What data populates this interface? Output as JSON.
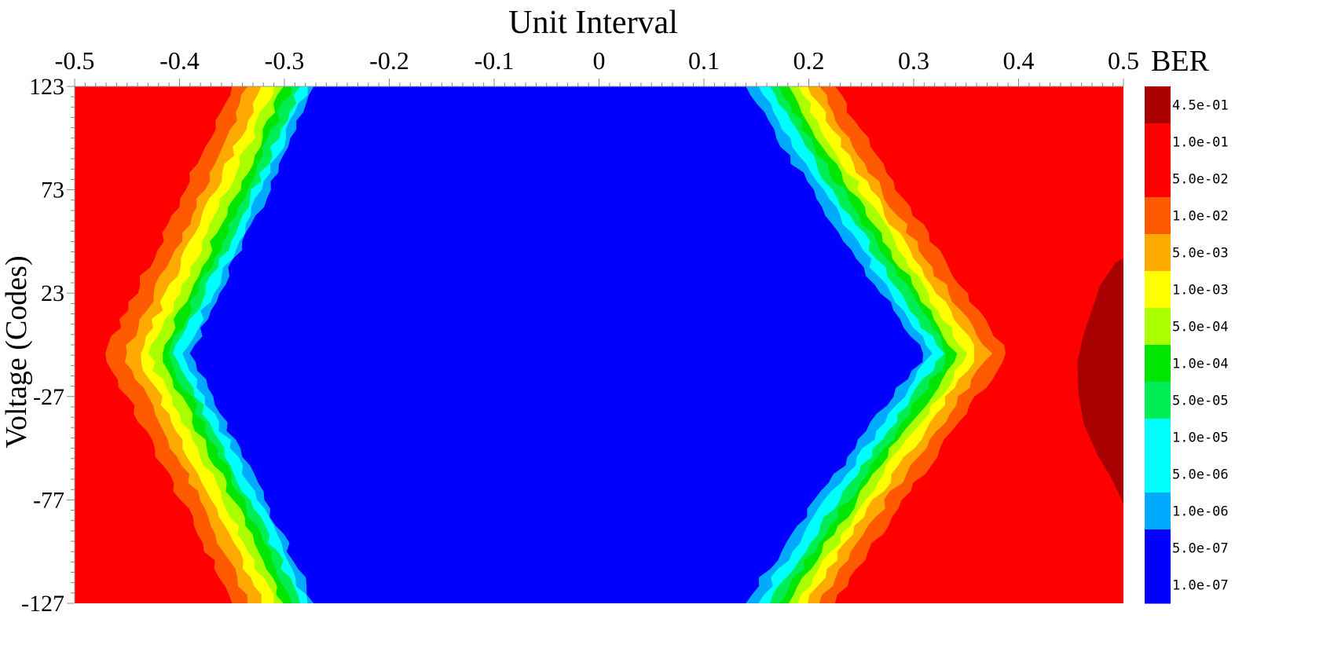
{
  "chart_data": {
    "type": "heatmap",
    "subtype": "bathtub-eye-contour",
    "title": "Unit Interval",
    "xlabel": "Unit Interval",
    "ylabel": "Voltage (Codes)",
    "x_ticks": [
      -0.5,
      -0.4,
      -0.3,
      -0.2,
      -0.1,
      0,
      0.1,
      0.2,
      0.3,
      0.4,
      0.5
    ],
    "x_tick_labels": [
      "-0.5",
      "-0.4",
      "-0.3",
      "-0.2",
      "-0.1",
      "0",
      "0.1",
      "0.2",
      "0.3",
      "0.4",
      "0.5"
    ],
    "y_ticks": [
      123,
      73,
      23,
      -27,
      -77,
      -127
    ],
    "y_tick_labels": [
      "123",
      "73",
      "23",
      "-27",
      "-77",
      "-127"
    ],
    "xlim": [
      -0.5,
      0.5
    ],
    "ylim": [
      -127,
      123
    ],
    "colorbar": {
      "title": "BER",
      "levels": [
        {
          "label": "4.5e-01",
          "color": "#a80000"
        },
        {
          "label": "1.0e-01",
          "color": "#ff0000"
        },
        {
          "label": "5.0e-02",
          "color": "#ff0000"
        },
        {
          "label": "1.0e-02",
          "color": "#ff5a00"
        },
        {
          "label": "5.0e-03",
          "color": "#ffaa00"
        },
        {
          "label": "1.0e-03",
          "color": "#ffff00"
        },
        {
          "label": "5.0e-04",
          "color": "#aaff00"
        },
        {
          "label": "1.0e-04",
          "color": "#00e600"
        },
        {
          "label": "5.0e-05",
          "color": "#00ee55"
        },
        {
          "label": "1.0e-05",
          "color": "#00ffff"
        },
        {
          "label": "5.0e-06",
          "color": "#00ffff"
        },
        {
          "label": "1.0e-06",
          "color": "#00aaff"
        },
        {
          "label": "5.0e-07",
          "color": "#0000ff"
        },
        {
          "label": "1.0e-07",
          "color": "#0000ff"
        }
      ]
    },
    "eye_contours": {
      "center_y": -7,
      "left": [
        {
          "ber": "1.0e-01",
          "tip_x": -0.472,
          "edge_x": -0.35,
          "color": "#ff5a00"
        },
        {
          "ber": "1.0e-02",
          "tip_x": -0.452,
          "edge_x": -0.335,
          "color": "#ffaa00"
        },
        {
          "ber": "5.0e-03",
          "tip_x": -0.44,
          "edge_x": -0.322,
          "color": "#ffff00"
        },
        {
          "ber": "1.0e-03",
          "tip_x": -0.43,
          "edge_x": -0.31,
          "color": "#aaff00"
        },
        {
          "ber": "5.0e-04",
          "tip_x": -0.42,
          "edge_x": -0.301,
          "color": "#00e600"
        },
        {
          "ber": "1.0e-04",
          "tip_x": -0.412,
          "edge_x": -0.293,
          "color": "#00ee55"
        },
        {
          "ber": "5.0e-05",
          "tip_x": -0.405,
          "edge_x": -0.285,
          "color": "#00ffff"
        },
        {
          "ber": "1.0e-06",
          "tip_x": -0.397,
          "edge_x": -0.278,
          "color": "#00aaff"
        },
        {
          "ber": "1.0e-07",
          "tip_x": -0.39,
          "edge_x": -0.272,
          "color": "#0000ff"
        }
      ],
      "right": [
        {
          "ber": "1.0e-01",
          "tip_x": 0.39,
          "edge_x": 0.225,
          "color": "#ff5a00"
        },
        {
          "ber": "1.0e-02",
          "tip_x": 0.373,
          "edge_x": 0.21,
          "color": "#ffaa00"
        },
        {
          "ber": "5.0e-03",
          "tip_x": 0.362,
          "edge_x": 0.199,
          "color": "#ffff00"
        },
        {
          "ber": "1.0e-03",
          "tip_x": 0.352,
          "edge_x": 0.19,
          "color": "#aaff00"
        },
        {
          "ber": "5.0e-04",
          "tip_x": 0.343,
          "edge_x": 0.181,
          "color": "#00e600"
        },
        {
          "ber": "1.0e-04",
          "tip_x": 0.335,
          "edge_x": 0.172,
          "color": "#00ee55"
        },
        {
          "ber": "5.0e-05",
          "tip_x": 0.327,
          "edge_x": 0.163,
          "color": "#00ffff"
        },
        {
          "ber": "1.0e-06",
          "tip_x": 0.318,
          "edge_x": 0.152,
          "color": "#00aaff"
        },
        {
          "ber": "1.0e-07",
          "tip_x": 0.31,
          "edge_x": 0.14,
          "color": "#0000ff"
        }
      ],
      "dark_region": {
        "ber": "4.5e-01",
        "color": "#a80000",
        "points": [
          [
            0.5,
            40
          ],
          [
            0.493,
            38
          ],
          [
            0.478,
            27
          ],
          [
            0.47,
            15
          ],
          [
            0.462,
            3
          ],
          [
            0.456,
            -10
          ],
          [
            0.457,
            -25
          ],
          [
            0.462,
            -40
          ],
          [
            0.475,
            -55
          ],
          [
            0.49,
            -68
          ],
          [
            0.5,
            -79
          ]
        ]
      }
    }
  }
}
